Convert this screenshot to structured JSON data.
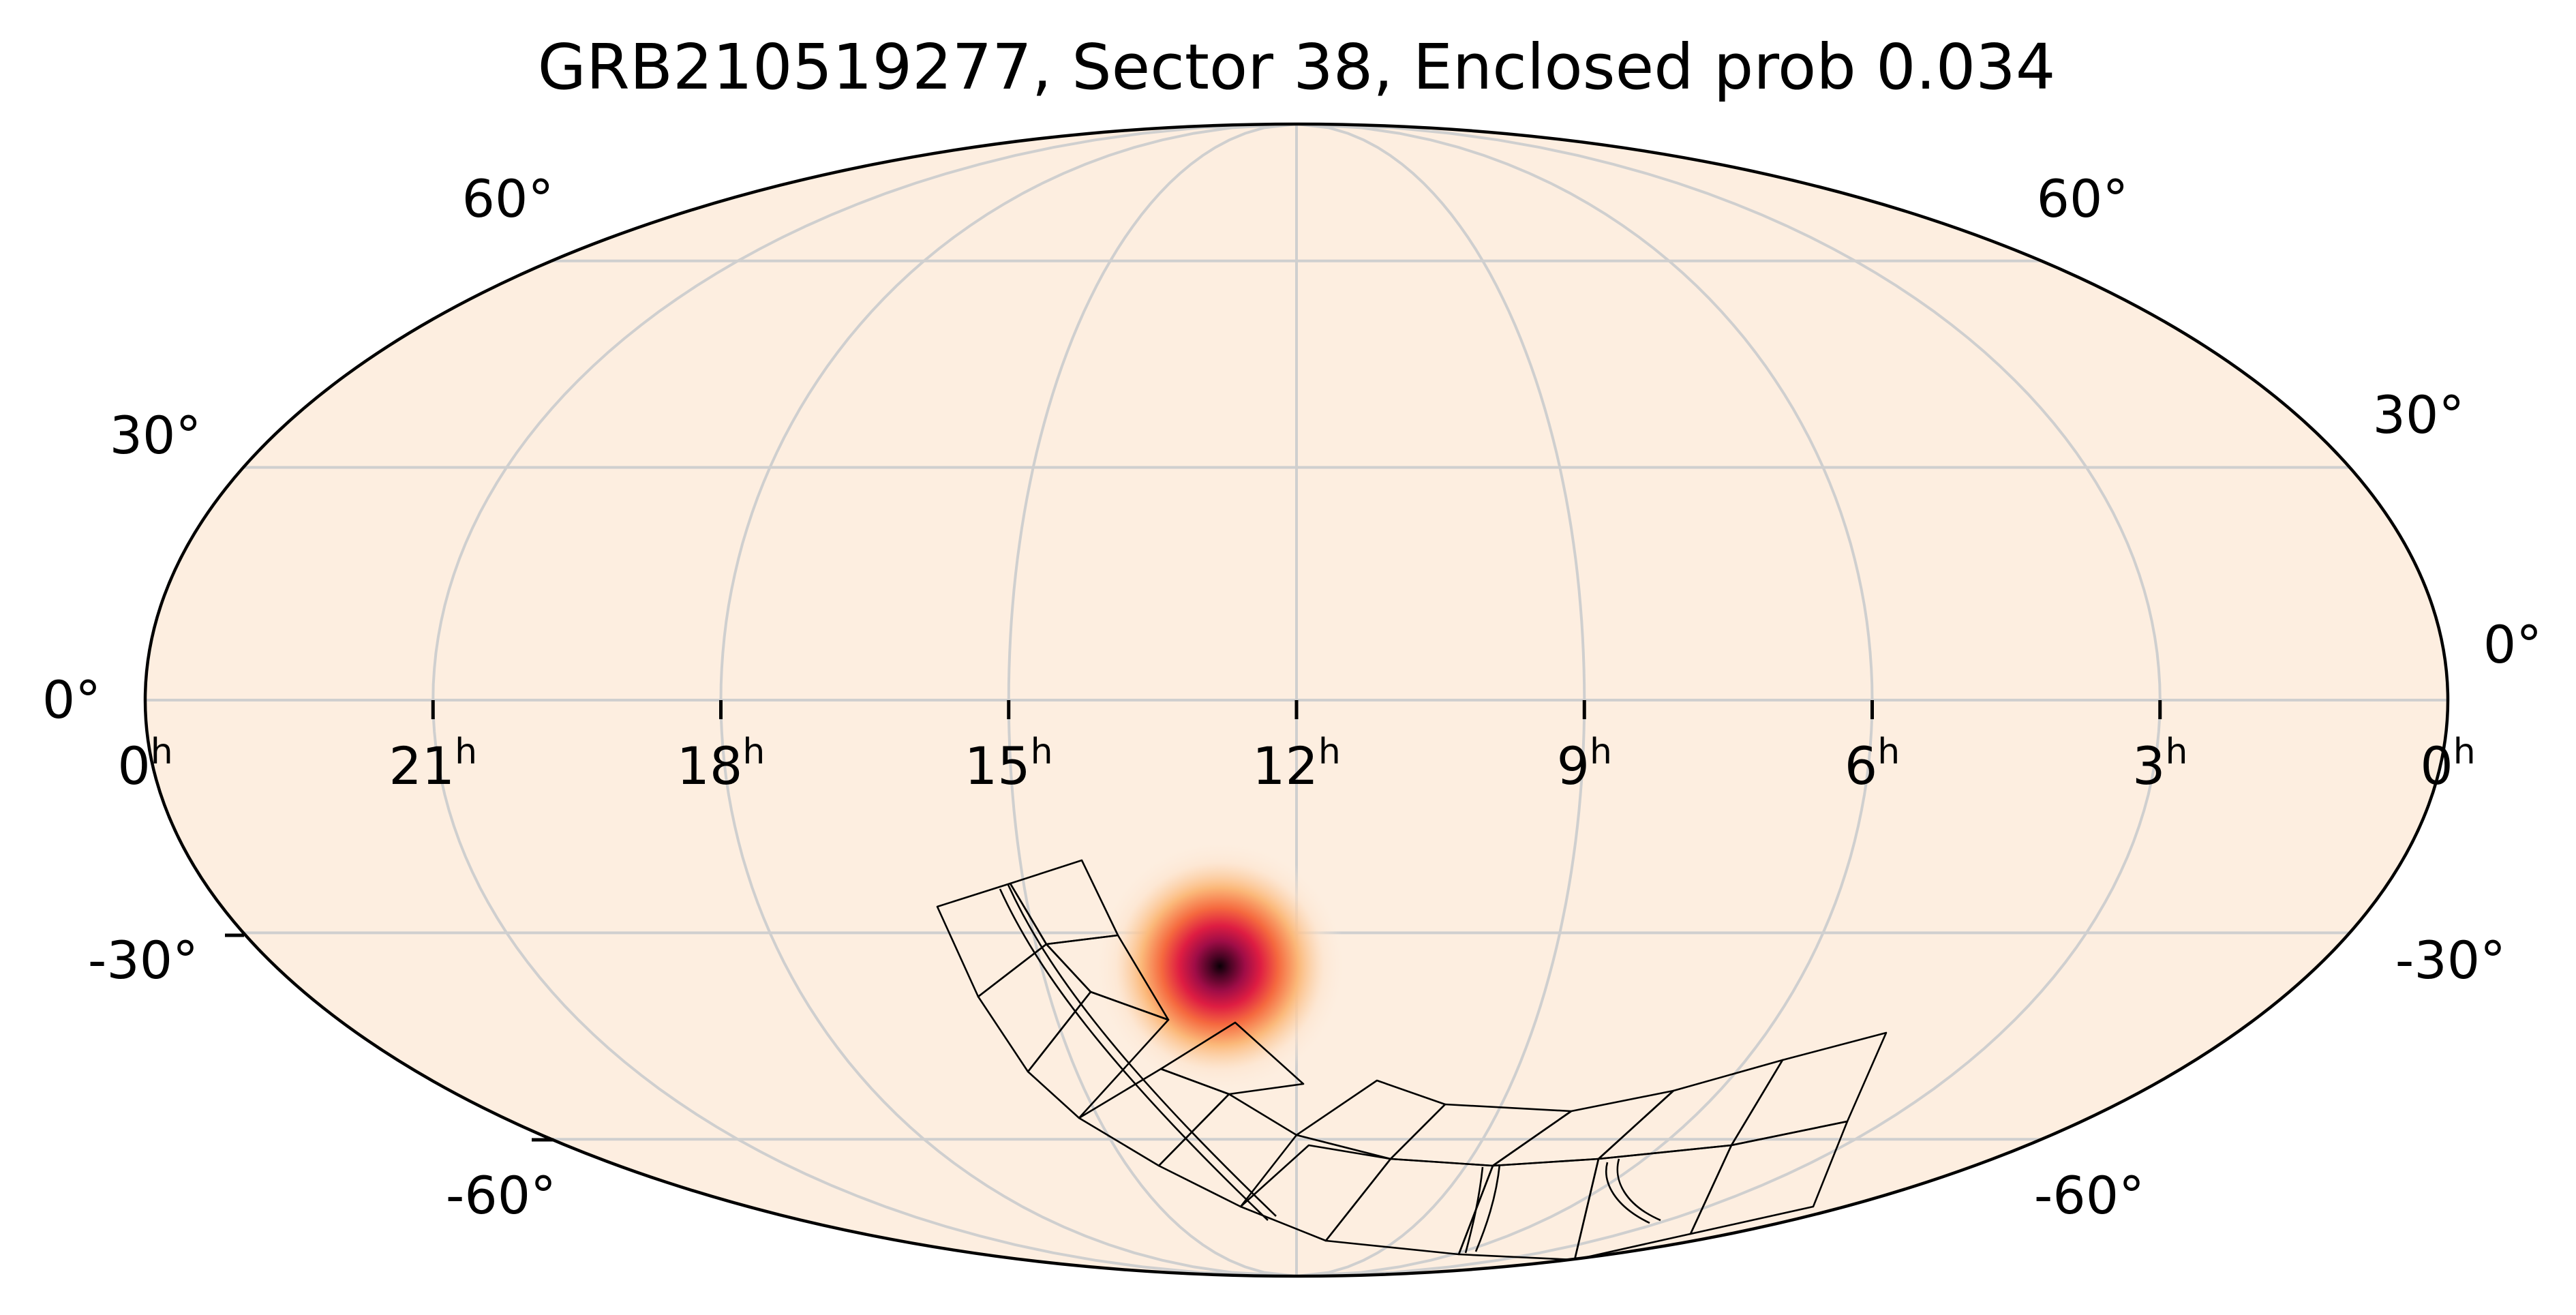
{
  "chart_data": {
    "type": "heatmap",
    "projection": "mollweide",
    "title": "GRB210519277, Sector 38, Enclosed prob 0.034",
    "ra_tick_labels": [
      {
        "ra_h": 24,
        "label": "0",
        "unit": "h"
      },
      {
        "ra_h": 21,
        "label": "21",
        "unit": "h"
      },
      {
        "ra_h": 18,
        "label": "18",
        "unit": "h"
      },
      {
        "ra_h": 15,
        "label": "15",
        "unit": "h"
      },
      {
        "ra_h": 12,
        "label": "12",
        "unit": "h"
      },
      {
        "ra_h": 9,
        "label": "9",
        "unit": "h"
      },
      {
        "ra_h": 6,
        "label": "6",
        "unit": "h"
      },
      {
        "ra_h": 3,
        "label": "3",
        "unit": "h"
      },
      {
        "ra_h": 0,
        "label": "0",
        "unit": "h"
      }
    ],
    "dec_tick_labels": [
      "60°",
      "30°",
      "0°",
      "-30°",
      "-60°"
    ],
    "grid": true,
    "ra_grid_hours": [
      3,
      6,
      9,
      15,
      18,
      21
    ],
    "dec_grid_deg": [
      60,
      30,
      0,
      -30,
      -60
    ],
    "probability_peak": {
      "ra_h": 12.9,
      "dec_deg": -34.5,
      "sigma_deg": 4.5
    },
    "colormap": [
      "#fdeee0",
      "#fbb879",
      "#f5693f",
      "#de1d42",
      "#a00d47",
      "#4a0424",
      "#0a0006"
    ],
    "tess_sector": "38",
    "enclosed_prob": 0.034
  }
}
